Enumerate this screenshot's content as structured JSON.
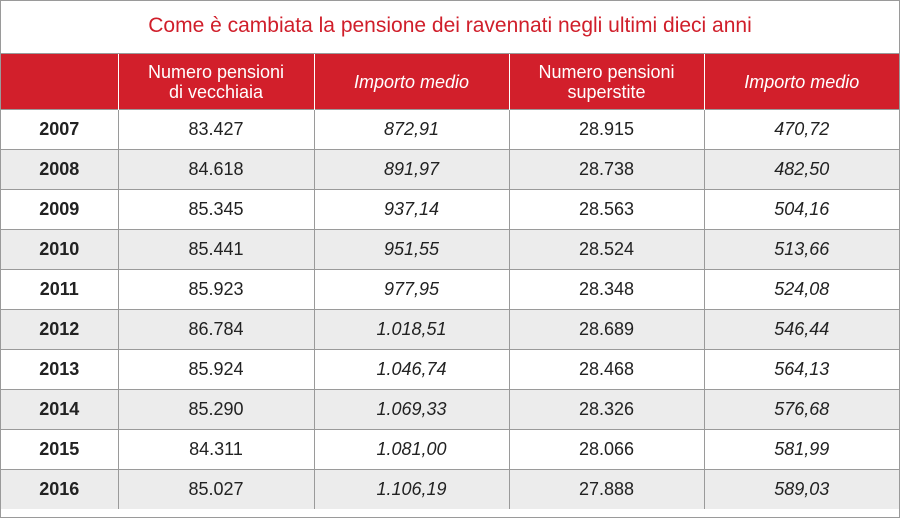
{
  "chart_data": {
    "type": "table",
    "title": "Come è cambiata la pensione dei ravennati negli ultimi dieci anni",
    "columns": [
      "",
      "Numero pensioni di vecchiaia",
      "Importo medio",
      "Numero pensioni superstite",
      "Importo medio"
    ],
    "header": {
      "col1_line1": "Numero pensioni",
      "col1_line2": "di vecchiaia",
      "col2": "Importo medio",
      "col3_line1": "Numero pensioni",
      "col3_line2": "superstite",
      "col4": "Importo medio"
    },
    "rows": [
      [
        "2007",
        "83.427",
        "872,91",
        "28.915",
        "470,72"
      ],
      [
        "2008",
        "84.618",
        "891,97",
        "28.738",
        "482,50"
      ],
      [
        "2009",
        "85.345",
        "937,14",
        "28.563",
        "504,16"
      ],
      [
        "2010",
        "85.441",
        "951,55",
        "28.524",
        "513,66"
      ],
      [
        "2011",
        "85.923",
        "977,95",
        "28.348",
        "524,08"
      ],
      [
        "2012",
        "86.784",
        "1.018,51",
        "28.689",
        "546,44"
      ],
      [
        "2013",
        "85.924",
        "1.046,74",
        "28.468",
        "564,13"
      ],
      [
        "2014",
        "85.290",
        "1.069,33",
        "28.326",
        "576,68"
      ],
      [
        "2015",
        "84.311",
        "1.081,00",
        "28.066",
        "581,99"
      ],
      [
        "2016",
        "85.027",
        "1.106,19",
        "27.888",
        "589,03"
      ]
    ],
    "colors": {
      "title": "#d01e2a",
      "header_background": "#d21f2b",
      "header_text": "#ffffff",
      "alt_row_background": "#ececec"
    }
  }
}
